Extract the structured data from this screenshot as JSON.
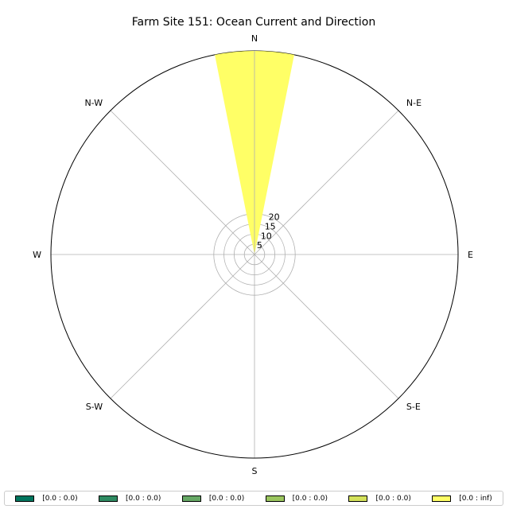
{
  "chart_data": {
    "type": "windrose",
    "title": "Farm Site 151: Ocean Current and Direction",
    "directions": [
      "N",
      "N-E",
      "E",
      "S-E",
      "S",
      "S-W",
      "W",
      "N-W"
    ],
    "radial_ticks": [
      "5",
      "10",
      "15",
      "20"
    ],
    "radial_tick_values": [
      5,
      10,
      15,
      20
    ],
    "r_max": 100,
    "grid": true,
    "bars": [
      {
        "direction_deg": 0,
        "width_deg": 22.5,
        "value": 100,
        "color": "#ffff66"
      }
    ],
    "legend": {
      "position": "bottom",
      "items": [
        {
          "label": "[0.0 : 0.0)",
          "color": "#00755e"
        },
        {
          "label": "[0.0 : 0.0)",
          "color": "#2e8b62"
        },
        {
          "label": "[0.0 : 0.0)",
          "color": "#66a865"
        },
        {
          "label": "[0.0 : 0.0)",
          "color": "#9bc65f"
        },
        {
          "label": "[0.0 : 0.0)",
          "color": "#d4e25b"
        },
        {
          "label": "[0.0 : inf)",
          "color": "#ffff66"
        }
      ]
    }
  }
}
